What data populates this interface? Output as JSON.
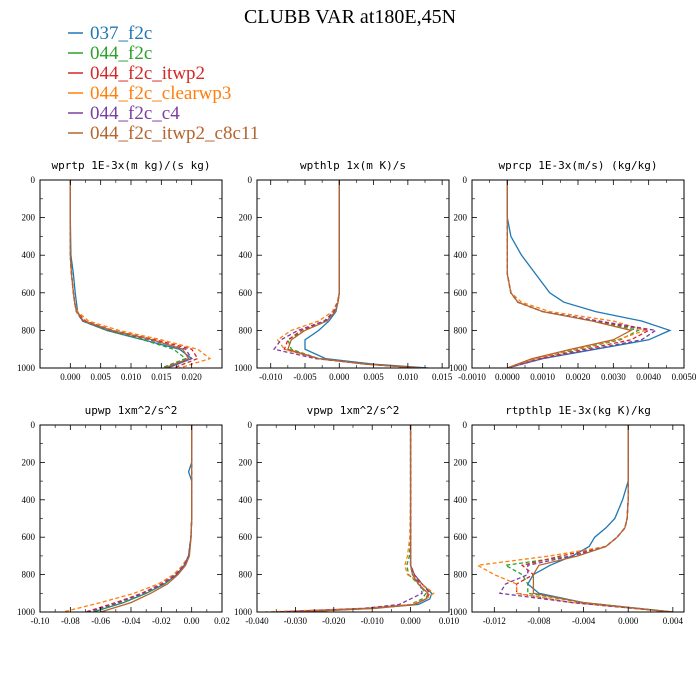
{
  "figure": {
    "title": "CLUBB VAR at180E,45N"
  },
  "legend": [
    {
      "name": "037_f2c",
      "color": "#1f77b4",
      "dash": "solid"
    },
    {
      "name": "044_f2c",
      "color": "#2ca02c",
      "dash": "dash"
    },
    {
      "name": "044_f2c_itwp2",
      "color": "#d62728",
      "dash": "dash"
    },
    {
      "name": "044_f2c_clearwp3",
      "color": "#ff7f0e",
      "dash": "dash"
    },
    {
      "name": "044_f2c_c4",
      "color": "#7a3fa0",
      "dash": "dash"
    },
    {
      "name": "044_f2c_itwp2_c8c11",
      "color": "#b5652f",
      "dash": "solid"
    }
  ],
  "chart_data": [
    {
      "type": "line",
      "title": "wprtp  1E-3x(m kg)/(s kg)",
      "xlim": [
        -0.005,
        0.025
      ],
      "xticks": [
        "0.000",
        "0.005",
        "0.010",
        "0.015",
        "0.020"
      ],
      "xtick_values": [
        0,
        0.005,
        0.01,
        0.015,
        0.02
      ],
      "ylim": [
        0,
        1000
      ],
      "yticks": [
        "0",
        "200",
        "400",
        "600",
        "800",
        "1000"
      ],
      "y_inverted": true,
      "y": [
        0,
        200,
        400,
        500,
        600,
        650,
        700,
        750,
        800,
        850,
        900,
        950,
        1000
      ],
      "series": [
        {
          "values": [
            0,
            0,
            0.0001,
            0.0005,
            0.0008,
            0.001,
            0.0012,
            0.002,
            0.006,
            0.012,
            0.018,
            0.02,
            0.016
          ]
        },
        {
          "values": [
            0,
            0,
            0,
            0.0002,
            0.0005,
            0.0007,
            0.001,
            0.002,
            0.006,
            0.012,
            0.017,
            0.019,
            0.015
          ]
        },
        {
          "values": [
            0,
            0,
            0,
            0.0002,
            0.0005,
            0.0007,
            0.001,
            0.0025,
            0.007,
            0.014,
            0.02,
            0.021,
            0.017
          ]
        },
        {
          "values": [
            0,
            0,
            0,
            0.0002,
            0.0005,
            0.0007,
            0.0012,
            0.003,
            0.008,
            0.015,
            0.021,
            0.023,
            0.018
          ]
        },
        {
          "values": [
            0,
            0,
            0,
            0.0002,
            0.0005,
            0.0007,
            0.001,
            0.002,
            0.0065,
            0.013,
            0.019,
            0.02,
            0.016
          ]
        },
        {
          "values": [
            0,
            0,
            0,
            0.0002,
            0.0005,
            0.0007,
            0.001,
            0.0022,
            0.0068,
            0.0135,
            0.0185,
            0.0195,
            0.0155
          ]
        }
      ]
    },
    {
      "type": "line",
      "title": "wpthlp  1x(m K)/s",
      "xlim": [
        -0.012,
        0.016
      ],
      "xticks": [
        "-0.010",
        "-0.005",
        "0.000",
        "0.005",
        "0.010",
        "0.015"
      ],
      "xtick_values": [
        -0.01,
        -0.005,
        0,
        0.005,
        0.01,
        0.015
      ],
      "ylim": [
        0,
        1000
      ],
      "yticks": [
        "0",
        "200",
        "400",
        "600",
        "800",
        "1000"
      ],
      "y_inverted": true,
      "y": [
        0,
        200,
        400,
        600,
        650,
        700,
        750,
        800,
        850,
        900,
        950,
        980,
        1000
      ],
      "series": [
        {
          "values": [
            0,
            0,
            0,
            0,
            -0.0002,
            -0.0005,
            -0.0015,
            -0.003,
            -0.005,
            -0.005,
            -0.002,
            0.005,
            0.013
          ]
        },
        {
          "values": [
            0,
            0,
            0,
            0,
            -0.0002,
            -0.0007,
            -0.002,
            -0.005,
            -0.0075,
            -0.007,
            -0.003,
            0.004,
            0.012
          ]
        },
        {
          "values": [
            0,
            0,
            0,
            0,
            -0.0002,
            -0.0007,
            -0.002,
            -0.0055,
            -0.0075,
            -0.008,
            -0.003,
            0.004,
            0.012
          ]
        },
        {
          "values": [
            0,
            0,
            0,
            0,
            -0.0003,
            -0.001,
            -0.003,
            -0.007,
            -0.009,
            -0.008,
            -0.003,
            0.004,
            0.012
          ]
        },
        {
          "values": [
            0,
            0,
            0,
            0,
            -0.0002,
            -0.0008,
            -0.0022,
            -0.006,
            -0.0085,
            -0.0095,
            -0.0035,
            0.004,
            0.012
          ]
        },
        {
          "values": [
            0,
            0,
            0,
            0,
            -0.0002,
            -0.0006,
            -0.0018,
            -0.005,
            -0.007,
            -0.0075,
            -0.003,
            0.004,
            0.012
          ]
        }
      ]
    },
    {
      "type": "line",
      "title": "wprcp  1E-3x(m/s) (kg/kg)",
      "xlim": [
        -0.001,
        0.005
      ],
      "xticks": [
        "-0.0010",
        "0.0000",
        "0.0010",
        "0.0020",
        "0.0030",
        "0.0040",
        "0.0050"
      ],
      "xtick_values": [
        -0.001,
        0,
        0.001,
        0.002,
        0.003,
        0.004,
        0.005
      ],
      "ylim": [
        0,
        1000
      ],
      "yticks": [
        "0",
        "200",
        "400",
        "600",
        "800",
        "1000"
      ],
      "y_inverted": true,
      "y": [
        0,
        200,
        300,
        400,
        500,
        600,
        650,
        700,
        750,
        800,
        850,
        900,
        950,
        1000
      ],
      "series": [
        {
          "values": [
            0,
            0,
            0.0001,
            0.0004,
            0.0008,
            0.0012,
            0.0016,
            0.0025,
            0.0038,
            0.0046,
            0.004,
            0.0025,
            0.001,
            0
          ]
        },
        {
          "values": [
            0,
            0,
            0,
            0,
            0,
            0.0001,
            0.0003,
            0.001,
            0.0025,
            0.0037,
            0.0032,
            0.002,
            0.0008,
            0
          ]
        },
        {
          "values": [
            0,
            0,
            0,
            0,
            0,
            0.0001,
            0.0003,
            0.001,
            0.0025,
            0.004,
            0.0035,
            0.0022,
            0.0009,
            0
          ]
        },
        {
          "values": [
            0,
            0,
            0,
            0,
            0,
            0.0001,
            0.0004,
            0.0012,
            0.003,
            0.0039,
            0.0031,
            0.0019,
            0.0008,
            0
          ]
        },
        {
          "values": [
            0,
            0,
            0,
            0,
            0,
            0.0001,
            0.0003,
            0.001,
            0.0026,
            0.0042,
            0.0038,
            0.0024,
            0.001,
            0
          ]
        },
        {
          "values": [
            0,
            0,
            0,
            0,
            0,
            0.0001,
            0.0003,
            0.001,
            0.0024,
            0.0035,
            0.003,
            0.0018,
            0.0007,
            0
          ]
        }
      ]
    },
    {
      "type": "line",
      "title": "upwp  1xm^2/s^2",
      "xlim": [
        -0.1,
        0.02
      ],
      "xticks": [
        "-0.10",
        "-0.08",
        "-0.06",
        "-0.04",
        "-0.02",
        "0.00",
        "0.02"
      ],
      "xtick_values": [
        -0.1,
        -0.08,
        -0.06,
        -0.04,
        -0.02,
        0,
        0.02
      ],
      "ylim": [
        0,
        1000
      ],
      "yticks": [
        "0",
        "200",
        "400",
        "600",
        "800",
        "1000"
      ],
      "y_inverted": true,
      "y": [
        0,
        200,
        250,
        300,
        400,
        500,
        600,
        700,
        750,
        800,
        850,
        900,
        950,
        1000
      ],
      "series": [
        {
          "values": [
            0,
            0,
            -0.002,
            0,
            0,
            0,
            -0.0005,
            -0.002,
            -0.005,
            -0.01,
            -0.018,
            -0.03,
            -0.045,
            -0.065
          ]
        },
        {
          "values": [
            0,
            0,
            0,
            0,
            0,
            0,
            -0.0005,
            -0.002,
            -0.005,
            -0.01,
            -0.018,
            -0.03,
            -0.045,
            -0.065
          ]
        },
        {
          "values": [
            0,
            0,
            0,
            0,
            0,
            0,
            -0.0005,
            -0.002,
            -0.005,
            -0.011,
            -0.02,
            -0.033,
            -0.05,
            -0.07
          ]
        },
        {
          "values": [
            0,
            0,
            0,
            0,
            0,
            0,
            -0.0005,
            -0.002,
            -0.006,
            -0.012,
            -0.022,
            -0.038,
            -0.06,
            -0.085
          ]
        },
        {
          "values": [
            0,
            0,
            0,
            0,
            0,
            0,
            -0.0005,
            -0.002,
            -0.005,
            -0.01,
            -0.019,
            -0.032,
            -0.048,
            -0.068
          ]
        },
        {
          "values": [
            0,
            0,
            0,
            0,
            0,
            0,
            -0.0004,
            -0.0015,
            -0.004,
            -0.009,
            -0.016,
            -0.027,
            -0.04,
            -0.06
          ]
        }
      ]
    },
    {
      "type": "line",
      "title": "vpwp  1xm^2/s^2",
      "xlim": [
        -0.04,
        0.01
      ],
      "xticks": [
        "-0.040",
        "-0.030",
        "-0.020",
        "-0.010",
        "0.000",
        "0.010"
      ],
      "xtick_values": [
        -0.04,
        -0.03,
        -0.02,
        -0.01,
        0,
        0.01
      ],
      "ylim": [
        0,
        1000
      ],
      "yticks": [
        "0",
        "200",
        "400",
        "600",
        "800",
        "1000"
      ],
      "y_inverted": true,
      "y": [
        0,
        200,
        400,
        600,
        700,
        750,
        800,
        850,
        900,
        930,
        960,
        980,
        1000
      ],
      "series": [
        {
          "values": [
            0,
            0,
            0,
            0,
            0,
            0,
            0.001,
            0.003,
            0.0055,
            0.005,
            0.002,
            -0.01,
            -0.03
          ]
        },
        {
          "values": [
            0,
            0,
            0,
            0,
            -0.0003,
            -0.001,
            -0.0005,
            0.002,
            0.004,
            0.003,
            0,
            -0.01,
            -0.03
          ]
        },
        {
          "values": [
            0,
            0,
            0,
            0,
            0,
            0,
            0.001,
            0.003,
            0.005,
            0.004,
            0.001,
            -0.01,
            -0.035
          ]
        },
        {
          "values": [
            0,
            0,
            0,
            -0.0002,
            -0.0008,
            -0.0015,
            -0.0008,
            0.003,
            0.006,
            0.004,
            0,
            -0.012,
            -0.038
          ]
        },
        {
          "values": [
            0,
            0,
            0,
            0,
            0,
            0,
            0.0005,
            0.0025,
            0.003,
            0,
            -0.003,
            -0.012,
            -0.035
          ]
        },
        {
          "values": [
            0,
            0,
            0,
            0,
            0,
            0,
            0.0005,
            0.002,
            0.0045,
            0.004,
            0.001,
            -0.009,
            -0.03
          ]
        }
      ]
    },
    {
      "type": "line",
      "title": "rtpthlp  1E-3x(kg K)/kg",
      "xlim": [
        -0.014,
        0.005
      ],
      "xticks": [
        "-0.012",
        "-0.008",
        "-0.004",
        "0.000",
        "0.004"
      ],
      "xtick_values": [
        -0.012,
        -0.008,
        -0.004,
        0,
        0.004
      ],
      "ylim": [
        0,
        1000
      ],
      "yticks": [
        "0",
        "200",
        "400",
        "600",
        "800",
        "1000"
      ],
      "y_inverted": true,
      "y": [
        0,
        200,
        300,
        400,
        500,
        550,
        600,
        650,
        700,
        750,
        800,
        850,
        900,
        950,
        1000
      ],
      "series": [
        {
          "values": [
            0,
            0,
            0,
            -0.0005,
            -0.0012,
            -0.002,
            -0.003,
            -0.0035,
            -0.005,
            -0.007,
            -0.0085,
            -0.009,
            -0.008,
            -0.004,
            0.004
          ]
        },
        {
          "values": [
            0,
            0,
            0,
            0,
            -0.0001,
            -0.0003,
            -0.001,
            -0.002,
            -0.005,
            -0.011,
            -0.0095,
            -0.009,
            -0.009,
            -0.004,
            0.004
          ]
        },
        {
          "values": [
            0,
            0,
            0,
            0,
            -0.0001,
            -0.0003,
            -0.001,
            -0.002,
            -0.006,
            -0.0095,
            -0.0085,
            -0.01,
            -0.01,
            -0.005,
            0.004
          ]
        },
        {
          "values": [
            0,
            0,
            0,
            0,
            -0.0001,
            -0.0003,
            -0.001,
            -0.002,
            -0.007,
            -0.0135,
            -0.012,
            -0.01,
            -0.01,
            -0.005,
            0.004
          ]
        },
        {
          "values": [
            0,
            0,
            0,
            0,
            -0.0001,
            -0.0003,
            -0.001,
            -0.002,
            -0.005,
            -0.009,
            -0.009,
            -0.011,
            -0.0115,
            -0.005,
            0.004
          ]
        },
        {
          "values": [
            0,
            0,
            0,
            0,
            -0.0001,
            -0.0003,
            -0.001,
            -0.002,
            -0.0045,
            -0.008,
            -0.0085,
            -0.0085,
            -0.0085,
            -0.004,
            0.0038
          ]
        }
      ]
    }
  ]
}
